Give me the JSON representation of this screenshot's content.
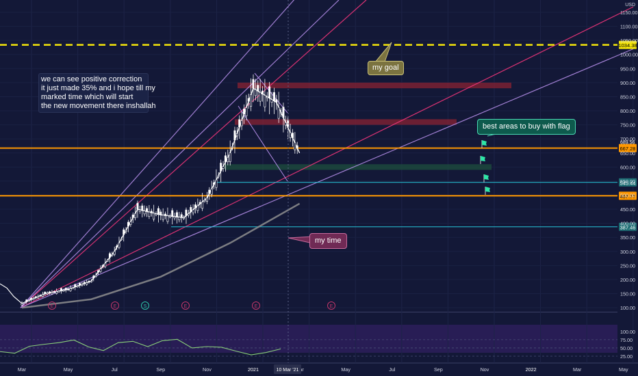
{
  "chart_data": {
    "type": "line",
    "title": "",
    "ylabel": "USD",
    "price_axis": {
      "unit_label": "USD",
      "ticks": [
        1150,
        1100,
        1050,
        1000,
        950,
        900,
        850,
        800,
        750,
        700,
        650,
        600,
        550,
        500,
        450,
        400,
        350,
        300,
        250,
        200,
        150,
        100
      ]
    },
    "price_axis_tick_labels": [
      "1150.00",
      "1100.00",
      "1050.00",
      "1000.00",
      "950.00",
      "900.00",
      "850.00",
      "800.00",
      "750.00",
      "700.00",
      "650.00",
      "600.00",
      "550.00",
      "500.00",
      "450.00",
      "400.00",
      "350.00",
      "300.00",
      "250.00",
      "200.00",
      "150.00",
      "100.00"
    ],
    "time_axis": {
      "labels": [
        "Mar",
        "May",
        "Jul",
        "Sep",
        "Nov",
        "2021",
        "Mar",
        "May",
        "Jul",
        "Sep",
        "Nov",
        "2022",
        "Mar",
        "May"
      ],
      "highlight_label": "10 Mar '21"
    },
    "price_series": {
      "name": "",
      "x": [
        "2020-03",
        "2020-04",
        "2020-05",
        "2020-06",
        "2020-07",
        "2020-08",
        "2020-09",
        "2020-10",
        "2020-11",
        "2020-12",
        "2021-01",
        "2021-02",
        "2021-03"
      ],
      "values": [
        115,
        150,
        165,
        195,
        300,
        450,
        430,
        420,
        490,
        650,
        880,
        830,
        650
      ]
    },
    "moving_average": {
      "name": "",
      "x": [
        "2020-03",
        "2020-06",
        "2020-09",
        "2020-12",
        "2021-03"
      ],
      "values": [
        100,
        130,
        210,
        330,
        470
      ]
    },
    "horizontal_levels": [
      {
        "value": 1034.38,
        "label": "1034.38",
        "style": "dashed",
        "color": "#f5e50a"
      },
      {
        "value": 667.28,
        "label": "667.28",
        "style": "solid",
        "color": "#ff9800"
      },
      {
        "value": 497.77,
        "label": "497.77",
        "style": "solid",
        "color": "#ff9800"
      },
      {
        "value": 545.44,
        "label": "545.44",
        "style": "solid",
        "color": "#26c6da"
      },
      {
        "value": 387.46,
        "label": "387.46",
        "style": "solid",
        "color": "#26c6da"
      }
    ],
    "last_price_label": "689.56",
    "zones": [
      {
        "name": "resistance-zone",
        "color": "#8a2233",
        "from": 880,
        "to": 900
      },
      {
        "name": "mid-zone",
        "color": "#8a2233",
        "from": 750,
        "to": 770
      },
      {
        "name": "support-zone",
        "color": "#1e4d3d",
        "from": 590,
        "to": 610
      }
    ],
    "earnings_markers": [
      "E",
      "E",
      "S",
      "E",
      "E",
      "E"
    ],
    "rsi": {
      "ticks": [
        100,
        75,
        50,
        25
      ],
      "tick_labels": [
        "100.00",
        "75.00",
        "50.00",
        "25.00"
      ],
      "values": [
        45,
        30,
        55,
        65,
        60,
        72,
        55,
        48,
        62,
        70,
        58,
        66,
        74,
        52,
        60,
        48,
        40,
        33,
        30,
        45
      ]
    },
    "grid": true,
    "colors": {
      "background": "#131837",
      "candle_up": "#ffffff",
      "candle_down": "#ffffff",
      "trend_pink": "#f0357a",
      "trend_lilac": "#b28ce6",
      "ma": "#8f8f8f",
      "rsi_line": "#8ad07a",
      "rsi_band": "#2d1f5a"
    }
  },
  "notes": {
    "main": [
      "we can see positive correction",
      "it just made 35% and i hope till my",
      "marked time which will start",
      "the new movement there inshallah"
    ],
    "goal": "my goal",
    "buy": "best areas to buy with flag",
    "time": "my time"
  }
}
